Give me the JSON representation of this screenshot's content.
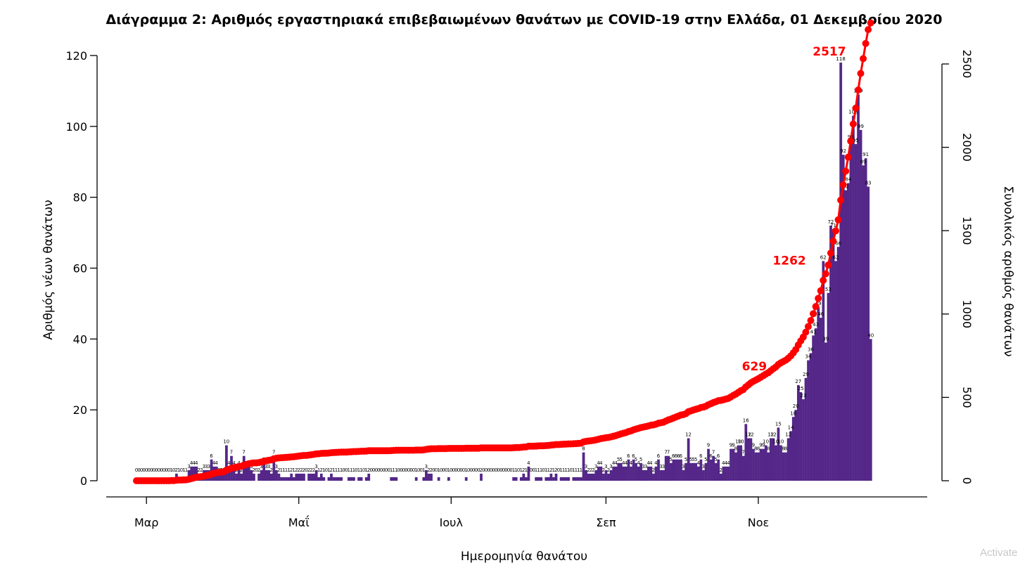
{
  "chart_data": {
    "type": "bar",
    "title": "Διάγραμμα 2: Αριθμός εργαστηριακά επιβεβαιωμένων θανάτων με COVID-19 στην Ελλάδα, 01 Δεκεμβρίου 2020",
    "xlabel": "Ημερομηνία θανάτου",
    "ylabel": "Αριθμός νέων θανάτων",
    "ylabel_right": "Συνολικός αριθμός θανάτων",
    "ylim": [
      0,
      120
    ],
    "ylim_right": [
      0,
      2500
    ],
    "yticks": [
      0,
      20,
      40,
      60,
      80,
      100,
      120
    ],
    "yticks_right": [
      0,
      500,
      1000,
      1500,
      2000,
      2500
    ],
    "x_start": "2020-02-26",
    "x_ticks": [
      {
        "date": "2020-03-01",
        "label": "Μαρ"
      },
      {
        "date": "2020-05-01",
        "label": "Μαΐ"
      },
      {
        "date": "2020-07-01",
        "label": "Ιουλ"
      },
      {
        "date": "2020-09-01",
        "label": "Σεπ"
      },
      {
        "date": "2020-11-01",
        "label": "Νοε"
      }
    ],
    "bar_color": "#542788",
    "line_color": "#ff0000",
    "series": [
      {
        "type": "bar",
        "name": "Αριθμός νέων θανάτων",
        "values": [
          0,
          0,
          0,
          0,
          0,
          0,
          0,
          0,
          0,
          0,
          0,
          0,
          0,
          0,
          1,
          0,
          2,
          1,
          0,
          1,
          1,
          3,
          4,
          4,
          4,
          2,
          2,
          3,
          3,
          3,
          6,
          4,
          4,
          2,
          2,
          2,
          10,
          4,
          7,
          4,
          2,
          4,
          2,
          7,
          4,
          4,
          3,
          2,
          0,
          2,
          3,
          5,
          3,
          3,
          2,
          7,
          3,
          2,
          1,
          1,
          1,
          1,
          2,
          1,
          2,
          2,
          2,
          2,
          0,
          2,
          2,
          2,
          3,
          1,
          2,
          1,
          0,
          1,
          2,
          1,
          1,
          1,
          1,
          0,
          0,
          1,
          1,
          1,
          0,
          1,
          1,
          0,
          1,
          2,
          0,
          0,
          0,
          0,
          0,
          0,
          0,
          0,
          1,
          1,
          1,
          0,
          0,
          0,
          0,
          0,
          0,
          0,
          1,
          0,
          0,
          1,
          3,
          2,
          2,
          0,
          0,
          1,
          0,
          0,
          0,
          1,
          0,
          0,
          0,
          0,
          0,
          0,
          1,
          0,
          0,
          0,
          0,
          0,
          2,
          0,
          0,
          0,
          0,
          0,
          0,
          0,
          0,
          0,
          0,
          0,
          0,
          1,
          1,
          0,
          1,
          2,
          1,
          4,
          0,
          0,
          1,
          1,
          1,
          0,
          1,
          1,
          2,
          1,
          2,
          0,
          1,
          1,
          1,
          1,
          0,
          1,
          1,
          1,
          1,
          8,
          3,
          2,
          2,
          2,
          3,
          4,
          4,
          2,
          3,
          2,
          3,
          4,
          4,
          5,
          5,
          4,
          4,
          6,
          4,
          6,
          5,
          4,
          5,
          3,
          3,
          4,
          4,
          2,
          4,
          6,
          3,
          3,
          7,
          7,
          5,
          6,
          6,
          6,
          6,
          3,
          5,
          12,
          5,
          5,
          5,
          4,
          6,
          3,
          5,
          9,
          6,
          7,
          5,
          6,
          2,
          4,
          4,
          4,
          9,
          9,
          8,
          10,
          10,
          7,
          16,
          12,
          12,
          9,
          8,
          8,
          9,
          9,
          10,
          8,
          12,
          12,
          10,
          15,
          10,
          8,
          8,
          12,
          14,
          18,
          20,
          27,
          25,
          23,
          29,
          34,
          36,
          41,
          43,
          49,
          46,
          62,
          39,
          53,
          72,
          71,
          62,
          66,
          118,
          92,
          82,
          84,
          96,
          103,
          95,
          109,
          99,
          89,
          91,
          83,
          40
        ]
      },
      {
        "type": "line",
        "name": "Συνολικός αριθμός θανάτων",
        "axis": "right"
      }
    ],
    "annotations": [
      {
        "date": "2020-10-31",
        "value": 629,
        "label": "629"
      },
      {
        "date": "2020-11-14",
        "value": 1262,
        "label": "1262"
      },
      {
        "date": "2020-11-30",
        "value": 2517,
        "label": "2517"
      }
    ]
  },
  "watermark": "Activate"
}
